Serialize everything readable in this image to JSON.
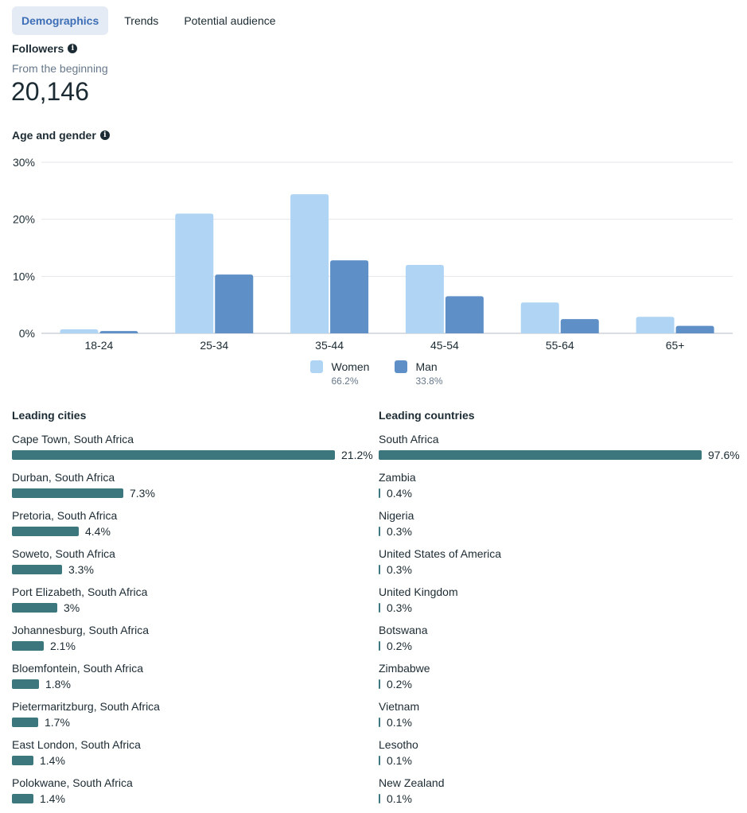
{
  "tabs": [
    {
      "label": "Demographics",
      "active": true
    },
    {
      "label": "Trends",
      "active": false
    },
    {
      "label": "Potential audience",
      "active": false
    }
  ],
  "followers": {
    "title": "Followers",
    "subtitle": "From the beginning",
    "count": "20,146",
    "info_icon": "info-icon"
  },
  "age_gender": {
    "title": "Age and gender",
    "info_icon": "info-icon",
    "legend": [
      {
        "label": "Women",
        "pct": "66.2%",
        "color": "#b0d5f4"
      },
      {
        "label": "Man",
        "pct": "33.8%",
        "color": "#5e8fc7"
      }
    ]
  },
  "chart_data": {
    "type": "bar",
    "title": "Age and gender",
    "xlabel": "",
    "ylabel": "",
    "categories": [
      "18-24",
      "25-34",
      "35-44",
      "45-54",
      "55-64",
      "65+"
    ],
    "series": [
      {
        "name": "Women",
        "values": [
          0.7,
          21.0,
          24.4,
          12.0,
          5.4,
          2.9
        ],
        "color": "#b0d5f4"
      },
      {
        "name": "Man",
        "values": [
          0.4,
          10.3,
          12.8,
          6.5,
          2.5,
          1.3
        ],
        "color": "#5e8fc7"
      }
    ],
    "ylim": [
      0,
      30
    ],
    "yticks": [
      "0%",
      "10%",
      "20%",
      "30%"
    ],
    "ytick_values": [
      0,
      10,
      20,
      30
    ],
    "grid": true,
    "legend_position": "bottom"
  },
  "leading_cities": {
    "title": "Leading cities",
    "bar_color": "#3b777d",
    "items": [
      {
        "name": "Cape Town, South Africa",
        "value": 21.2,
        "label": "21.2%"
      },
      {
        "name": "Durban, South Africa",
        "value": 7.3,
        "label": "7.3%"
      },
      {
        "name": "Pretoria, South Africa",
        "value": 4.4,
        "label": "4.4%"
      },
      {
        "name": "Soweto, South Africa",
        "value": 3.3,
        "label": "3.3%"
      },
      {
        "name": "Port Elizabeth, South Africa",
        "value": 3.0,
        "label": "3%"
      },
      {
        "name": "Johannesburg, South Africa",
        "value": 2.1,
        "label": "2.1%"
      },
      {
        "name": "Bloemfontein, South Africa",
        "value": 1.8,
        "label": "1.8%"
      },
      {
        "name": "Pietermaritzburg, South Africa",
        "value": 1.7,
        "label": "1.7%"
      },
      {
        "name": "East London, South Africa",
        "value": 1.4,
        "label": "1.4%"
      },
      {
        "name": "Polokwane, South Africa",
        "value": 1.4,
        "label": "1.4%"
      }
    ]
  },
  "leading_countries": {
    "title": "Leading countries",
    "bar_color": "#3b777d",
    "items": [
      {
        "name": "South Africa",
        "value": 97.6,
        "label": "97.6%"
      },
      {
        "name": "Zambia",
        "value": 0.4,
        "label": "0.4%"
      },
      {
        "name": "Nigeria",
        "value": 0.3,
        "label": "0.3%"
      },
      {
        "name": "United States of America",
        "value": 0.3,
        "label": "0.3%"
      },
      {
        "name": "United Kingdom",
        "value": 0.3,
        "label": "0.3%"
      },
      {
        "name": "Botswana",
        "value": 0.2,
        "label": "0.2%"
      },
      {
        "name": "Zimbabwe",
        "value": 0.2,
        "label": "0.2%"
      },
      {
        "name": "Vietnam",
        "value": 0.1,
        "label": "0.1%"
      },
      {
        "name": "Lesotho",
        "value": 0.1,
        "label": "0.1%"
      },
      {
        "name": "New Zealand",
        "value": 0.1,
        "label": "0.1%"
      }
    ]
  }
}
